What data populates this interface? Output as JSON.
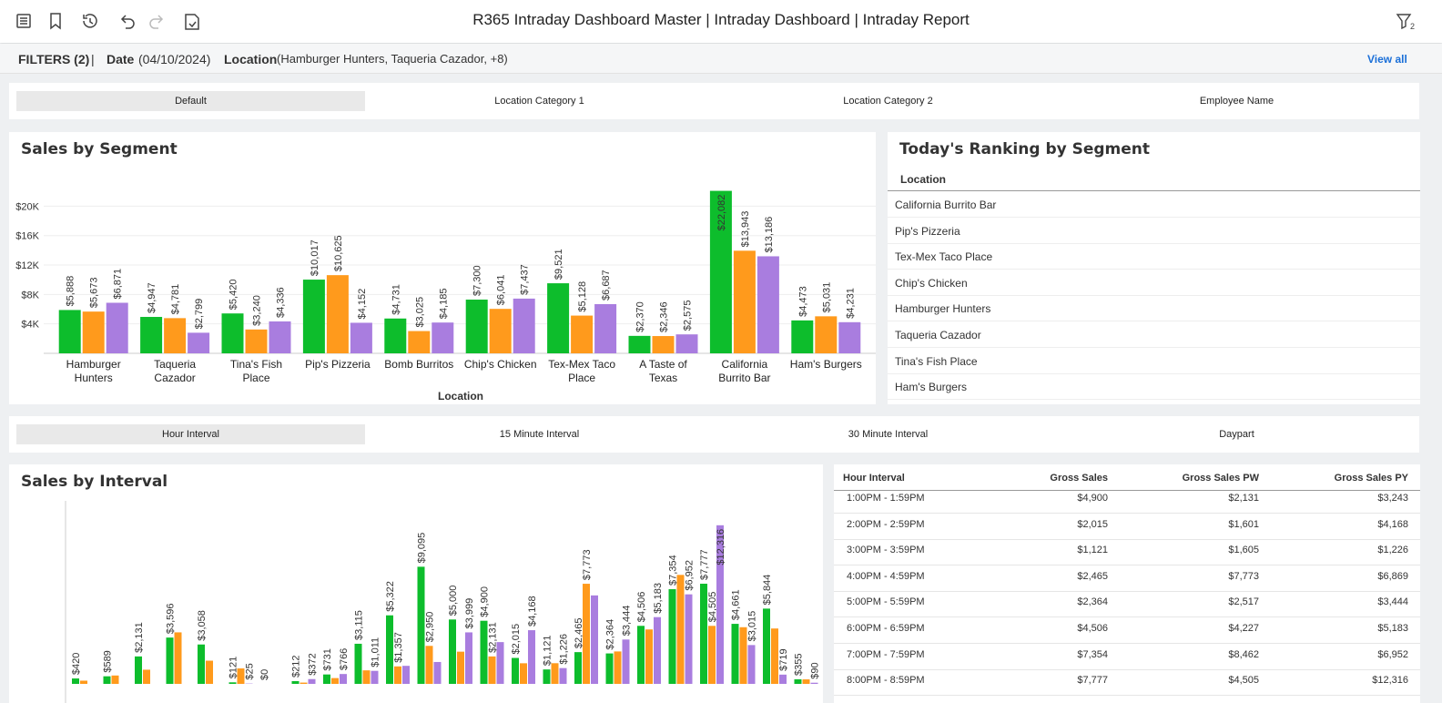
{
  "header": {
    "title": "R365 Intraday Dashboard Master | Intraday Dashboard | Intraday Report",
    "filter_count": "2"
  },
  "filters": {
    "label": "FILTERS (2)",
    "separator": "|",
    "date_label": "Date",
    "date_value": "(04/10/2024)",
    "location_label": "Location",
    "location_value": "(Hamburger Hunters, Taqueria Cazador, +8)",
    "view_all": "View all"
  },
  "segment_tabs": [
    "Default",
    "Location Category 1",
    "Location Category 2",
    "Employee Name"
  ],
  "sales_by_segment": {
    "type": "bar",
    "title": "Sales by Segment",
    "x_label": "Location",
    "categories": [
      "Hamburger Hunters",
      "Taqueria Cazador",
      "Tina's Fish Place",
      "Pip's Pizzeria",
      "Bomb Burritos",
      "Chip's Chicken",
      "Tex-Mex Taco Place",
      "A Taste of Texas",
      "California Burrito Bar",
      "Ham's Burgers"
    ],
    "series": [
      {
        "color": "#0dbd2c",
        "values": [
          5888,
          4947,
          5420,
          10017,
          4731,
          7300,
          9521,
          2370,
          22082,
          4473
        ],
        "value_labels": [
          "$5,888",
          "$4,947",
          "$5,420",
          "$10,017",
          "$4,731",
          "$7,300",
          "$9,521",
          "$2,370",
          "$22,082",
          "$4,473"
        ]
      },
      {
        "color": "#ff9a1c",
        "values": [
          5673,
          4781,
          3240,
          10625,
          3025,
          6041,
          5128,
          2346,
          13943,
          5031
        ],
        "value_labels": [
          "$5,673",
          "$4,781",
          "$3,240",
          "$10,625",
          "$3,025",
          "$6,041",
          "$5,128",
          "$2,346",
          "$13,943",
          "$5,031"
        ]
      },
      {
        "color": "#a97ddf",
        "values": [
          6871,
          2799,
          4336,
          4152,
          4185,
          7437,
          6687,
          2575,
          13186,
          4231
        ],
        "value_labels": [
          "$6,871",
          "$2,799",
          "$4,336",
          "$4,152",
          "$4,185",
          "$7,437",
          "$6,687",
          "$2,575",
          "$13,186",
          "$4,231"
        ]
      }
    ],
    "ylim": [
      0,
      25000
    ],
    "yticks": [
      {
        "value": 4000,
        "label": "$4K"
      },
      {
        "value": 8000,
        "label": "$8K"
      },
      {
        "value": 12000,
        "label": "$12K"
      },
      {
        "value": 16000,
        "label": "$16K"
      },
      {
        "value": 20000,
        "label": "$20K"
      }
    ],
    "grid": true
  },
  "ranking": {
    "title": "Today's Ranking by Segment",
    "column": "Location",
    "rows": [
      "California Burrito Bar",
      "Pip's Pizzeria",
      "Tex-Mex Taco Place",
      "Chip's Chicken",
      "Hamburger Hunters",
      "Taqueria Cazador",
      "Tina's Fish Place",
      "Ham's Burgers"
    ]
  },
  "interval_tabs": [
    "Hour Interval",
    "15 Minute Interval",
    "30 Minute Interval",
    "Daypart"
  ],
  "sales_by_interval": {
    "type": "bar",
    "title": "Sales by Interval",
    "series": [
      {
        "color": "#0dbd2c",
        "values": [
          420,
          589,
          2131,
          3596,
          3058,
          121,
          0,
          212,
          731,
          3115,
          5322,
          9095,
          5000,
          4900,
          2015,
          1121,
          2465,
          2364,
          4506,
          7354,
          7777,
          4661,
          5844,
          355
        ],
        "value_labels": [
          "$420",
          "$589",
          "$2,131",
          "$3,596",
          "$3,058",
          "$121",
          "$0",
          "$212",
          "$731",
          "$3,115",
          "$5,322",
          "$9,095",
          "$5,000",
          "$4,900",
          "$2,015",
          "$1,121",
          "$2,465",
          "$2,364",
          "$4,506",
          "$7,354",
          "$7,777",
          "$4,661",
          "$5,844",
          "$355"
        ]
      },
      {
        "color": "#ff9a1c",
        "values": [
          250,
          650,
          1100,
          4000,
          1800,
          1200,
          null,
          100,
          450,
          1050,
          1357,
          2950,
          2500,
          2131,
          1601,
          1605,
          7773,
          2517,
          4227,
          8462,
          4505,
          4400,
          4300,
          350
        ],
        "value_labels": [
          null,
          null,
          null,
          null,
          null,
          null,
          null,
          null,
          null,
          null,
          "$1,357",
          "$2,950",
          null,
          "$2,131",
          null,
          null,
          "$7,773",
          null,
          null,
          null,
          "$4,505",
          null,
          null,
          null
        ]
      },
      {
        "color": "#a97ddf",
        "values": [
          null,
          null,
          null,
          null,
          null,
          25,
          null,
          372,
          766,
          1011,
          1400,
          1700,
          3999,
          3243,
          4168,
          1226,
          6869,
          3444,
          5183,
          6952,
          12316,
          3015,
          719,
          90
        ],
        "value_labels": [
          null,
          null,
          null,
          null,
          null,
          "$25",
          null,
          "$372",
          "$766",
          "$1,011",
          null,
          null,
          "$3,999",
          null,
          "$4,168",
          "$1,226",
          null,
          "$3,444",
          "$5,183",
          "$6,952",
          "$12,316",
          "$3,015",
          "$719",
          "$90"
        ]
      }
    ],
    "ylim": [
      0,
      14000
    ]
  },
  "interval_table": {
    "columns": [
      "Hour Interval",
      "Gross Sales",
      "Gross Sales PW",
      "Gross Sales PY"
    ],
    "rows": [
      [
        "1:00PM - 1:59PM",
        "$4,900",
        "$2,131",
        "$3,243"
      ],
      [
        "2:00PM - 2:59PM",
        "$2,015",
        "$1,601",
        "$4,168"
      ],
      [
        "3:00PM - 3:59PM",
        "$1,121",
        "$1,605",
        "$1,226"
      ],
      [
        "4:00PM - 4:59PM",
        "$2,465",
        "$7,773",
        "$6,869"
      ],
      [
        "5:00PM - 5:59PM",
        "$2,364",
        "$2,517",
        "$3,444"
      ],
      [
        "6:00PM - 6:59PM",
        "$4,506",
        "$4,227",
        "$5,183"
      ],
      [
        "7:00PM - 7:59PM",
        "$7,354",
        "$8,462",
        "$6,952"
      ],
      [
        "8:00PM - 8:59PM",
        "$7,777",
        "$4,505",
        "$12,316"
      ]
    ]
  }
}
